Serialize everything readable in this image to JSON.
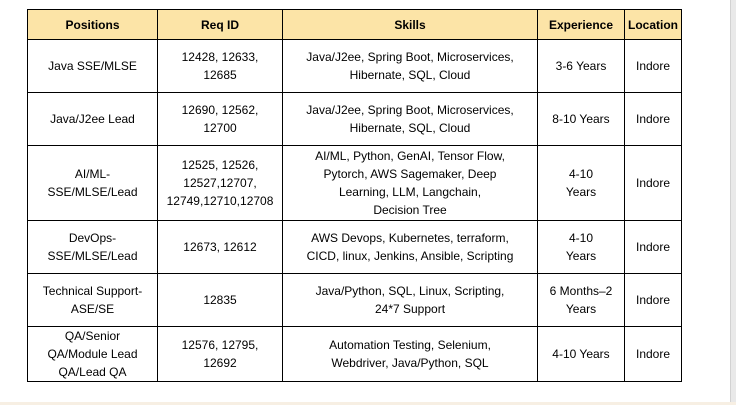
{
  "table": {
    "header_bg": "#FCE4A7",
    "headers": [
      "Positions",
      "Req ID",
      "Skills",
      "Experience",
      "Location"
    ],
    "rows": [
      {
        "position": "Java SSE/MLSE",
        "req_id": "12428, 12633,\n12685",
        "skills": "Java/J2ee, Spring Boot, Microservices,\nHibernate, SQL, Cloud",
        "experience": "3-6 Years",
        "location": "Indore"
      },
      {
        "position": "Java/J2ee Lead",
        "req_id": "12690, 12562,\n12700",
        "skills": "Java/J2ee, Spring Boot, Microservices,\nHibernate, SQL, Cloud",
        "experience": "8-10 Years",
        "location": "Indore"
      },
      {
        "position": "AI/ML-\nSSE/MLSE/Lead",
        "req_id": "12525, 12526,\n12527,12707,\n12749,12710,12708",
        "skills": "AI/ML, Python, GenAI, Tensor Flow,\nPytorch, AWS Sagemaker, Deep\nLearning, LLM, Langchain,\nDecision Tree",
        "experience": "4-10\nYears",
        "location": "Indore"
      },
      {
        "position": "DevOps-\nSSE/MLSE/Lead",
        "req_id": "12673, 12612",
        "skills": "AWS Devops, Kubernetes, terraform,\nCICD, linux, Jenkins, Ansible, Scripting",
        "experience": "4-10\nYears",
        "location": "Indore"
      },
      {
        "position": "Technical Support-\nASE/SE",
        "req_id": "12835",
        "skills": "Java/Python, SQL, Linux, Scripting,\n24*7 Support",
        "experience": "6 Months–2\nYears",
        "location": "Indore"
      },
      {
        "position": "QA/Senior\nQA/Module Lead\nQA/Lead QA",
        "req_id": "12576, 12795,\n12692",
        "skills": "Automation Testing, Selenium,\nWebdriver, Java/Python, SQL",
        "experience": "4-10 Years",
        "location": "Indore"
      }
    ]
  }
}
